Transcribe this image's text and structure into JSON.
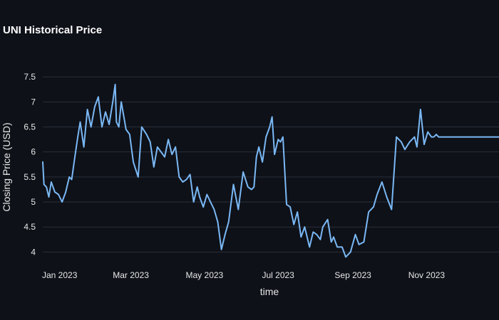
{
  "chart_data": {
    "type": "line",
    "title": "UNI Historical Price",
    "xlabel": "time",
    "ylabel": "Closing Price (USD)",
    "ylim": [
      3.75,
      7.9
    ],
    "xlim": [
      "2022-12-18",
      "2023-12-31"
    ],
    "y_ticks": [
      4,
      4.5,
      5,
      5.5,
      6,
      6.5,
      7,
      7.5
    ],
    "y_tick_labels": [
      "4",
      "4.5",
      "5",
      "5.5",
      "6",
      "6.5",
      "7",
      "7.5"
    ],
    "x_ticks": [
      "2023-01-01",
      "2023-03-01",
      "2023-05-01",
      "2023-07-01",
      "2023-09-01",
      "2023-11-01"
    ],
    "x_tick_labels": [
      "Jan 2023",
      "Mar 2023",
      "May 2023",
      "Jul 2023",
      "Sep 2023",
      "Nov 2023"
    ],
    "grid": true,
    "line_color": "#7ab8f5",
    "series": [
      {
        "x": [
          "2022-12-18",
          "2022-12-19",
          "2022-12-21",
          "2022-12-23",
          "2022-12-25",
          "2022-12-28",
          "2022-12-31",
          "2023-01-03",
          "2023-01-06",
          "2023-01-09",
          "2023-01-11",
          "2023-01-13",
          "2023-01-16",
          "2023-01-18",
          "2023-01-21",
          "2023-01-24",
          "2023-01-27",
          "2023-01-30",
          "2023-02-02",
          "2023-02-05",
          "2023-02-08",
          "2023-02-11",
          "2023-02-14",
          "2023-02-16",
          "2023-02-17",
          "2023-02-19",
          "2023-02-21",
          "2023-02-25",
          "2023-02-28",
          "2023-03-03",
          "2023-03-07",
          "2023-03-10",
          "2023-03-14",
          "2023-03-17",
          "2023-03-20",
          "2023-03-23",
          "2023-03-26",
          "2023-03-29",
          "2023-04-01",
          "2023-04-04",
          "2023-04-07",
          "2023-04-10",
          "2023-04-13",
          "2023-04-16",
          "2023-04-19",
          "2023-04-22",
          "2023-04-25",
          "2023-04-27",
          "2023-04-30",
          "2023-05-03",
          "2023-05-06",
          "2023-05-09",
          "2023-05-12",
          "2023-05-15",
          "2023-05-18",
          "2023-05-21",
          "2023-05-25",
          "2023-05-29",
          "2023-06-02",
          "2023-06-06",
          "2023-06-09",
          "2023-06-11",
          "2023-06-13",
          "2023-06-15",
          "2023-06-18",
          "2023-06-21",
          "2023-06-24",
          "2023-06-26",
          "2023-06-28",
          "2023-07-01",
          "2023-07-03",
          "2023-07-05",
          "2023-07-08",
          "2023-07-11",
          "2023-07-14",
          "2023-07-17",
          "2023-07-20",
          "2023-07-23",
          "2023-07-27",
          "2023-07-30",
          "2023-08-02",
          "2023-08-05",
          "2023-08-07",
          "2023-08-11",
          "2023-08-14",
          "2023-08-16",
          "2023-08-19",
          "2023-08-23",
          "2023-08-26",
          "2023-08-30",
          "2023-09-03",
          "2023-09-06",
          "2023-09-10",
          "2023-09-14",
          "2023-09-18",
          "2023-09-21",
          "2023-09-25",
          "2023-09-29",
          "2023-10-03",
          "2023-10-07",
          "2023-10-11",
          "2023-10-14",
          "2023-10-18",
          "2023-10-22",
          "2023-10-24",
          "2023-10-27",
          "2023-10-30",
          "2023-11-02",
          "2023-11-05",
          "2023-11-07",
          "2023-11-09",
          "2023-11-11",
          "2023-11-14",
          "2023-11-17",
          "2023-11-21",
          "2023-11-24",
          "2023-11-25",
          "2023-11-27",
          "2023-11-30",
          "2023-12-02",
          "2023-12-04",
          "2023-12-06",
          "2023-12-09",
          "2023-12-12",
          "2023-12-15",
          "2023-12-18",
          "2023-12-20",
          "2023-12-23",
          "2023-12-26",
          "2023-12-31"
        ],
        "y": [
          5.8,
          5.35,
          5.3,
          5.1,
          5.4,
          5.2,
          5.15,
          5.0,
          5.2,
          5.5,
          5.45,
          5.8,
          6.3,
          6.6,
          6.1,
          6.85,
          6.5,
          6.9,
          7.1,
          6.5,
          6.8,
          6.55,
          7.0,
          7.35,
          6.6,
          6.5,
          7.0,
          6.45,
          6.35,
          5.8,
          5.5,
          6.5,
          6.35,
          6.2,
          5.7,
          6.1,
          6.0,
          5.9,
          6.25,
          5.95,
          6.1,
          5.5,
          5.4,
          5.45,
          5.55,
          5.0,
          5.3,
          5.1,
          4.9,
          5.15,
          5.0,
          4.85,
          4.6,
          4.05,
          4.35,
          4.6,
          5.35,
          4.85,
          5.6,
          5.3,
          5.25,
          5.3,
          5.9,
          6.1,
          5.8,
          6.3,
          6.5,
          6.7,
          5.95,
          6.25,
          6.2,
          6.3,
          4.95,
          4.9,
          4.55,
          4.8,
          4.3,
          4.5,
          4.1,
          4.4,
          4.35,
          4.25,
          4.5,
          4.65,
          4.2,
          4.3,
          4.1,
          4.1,
          3.9,
          4.0,
          4.35,
          4.15,
          4.2,
          4.8,
          4.9,
          5.15,
          5.4,
          5.1,
          4.85,
          6.3,
          6.2,
          6.05,
          6.2,
          6.3,
          6.1,
          6.85,
          6.15,
          6.4,
          6.3,
          6.3,
          6.35,
          6.3,
          6.3,
          6.3,
          6.3,
          6.3,
          6.3,
          6.3,
          6.3,
          6.3,
          6.3,
          6.3,
          6.3,
          6.3,
          6.3,
          6.3,
          6.3,
          6.3,
          6.3,
          6.3
        ]
      }
    ]
  }
}
